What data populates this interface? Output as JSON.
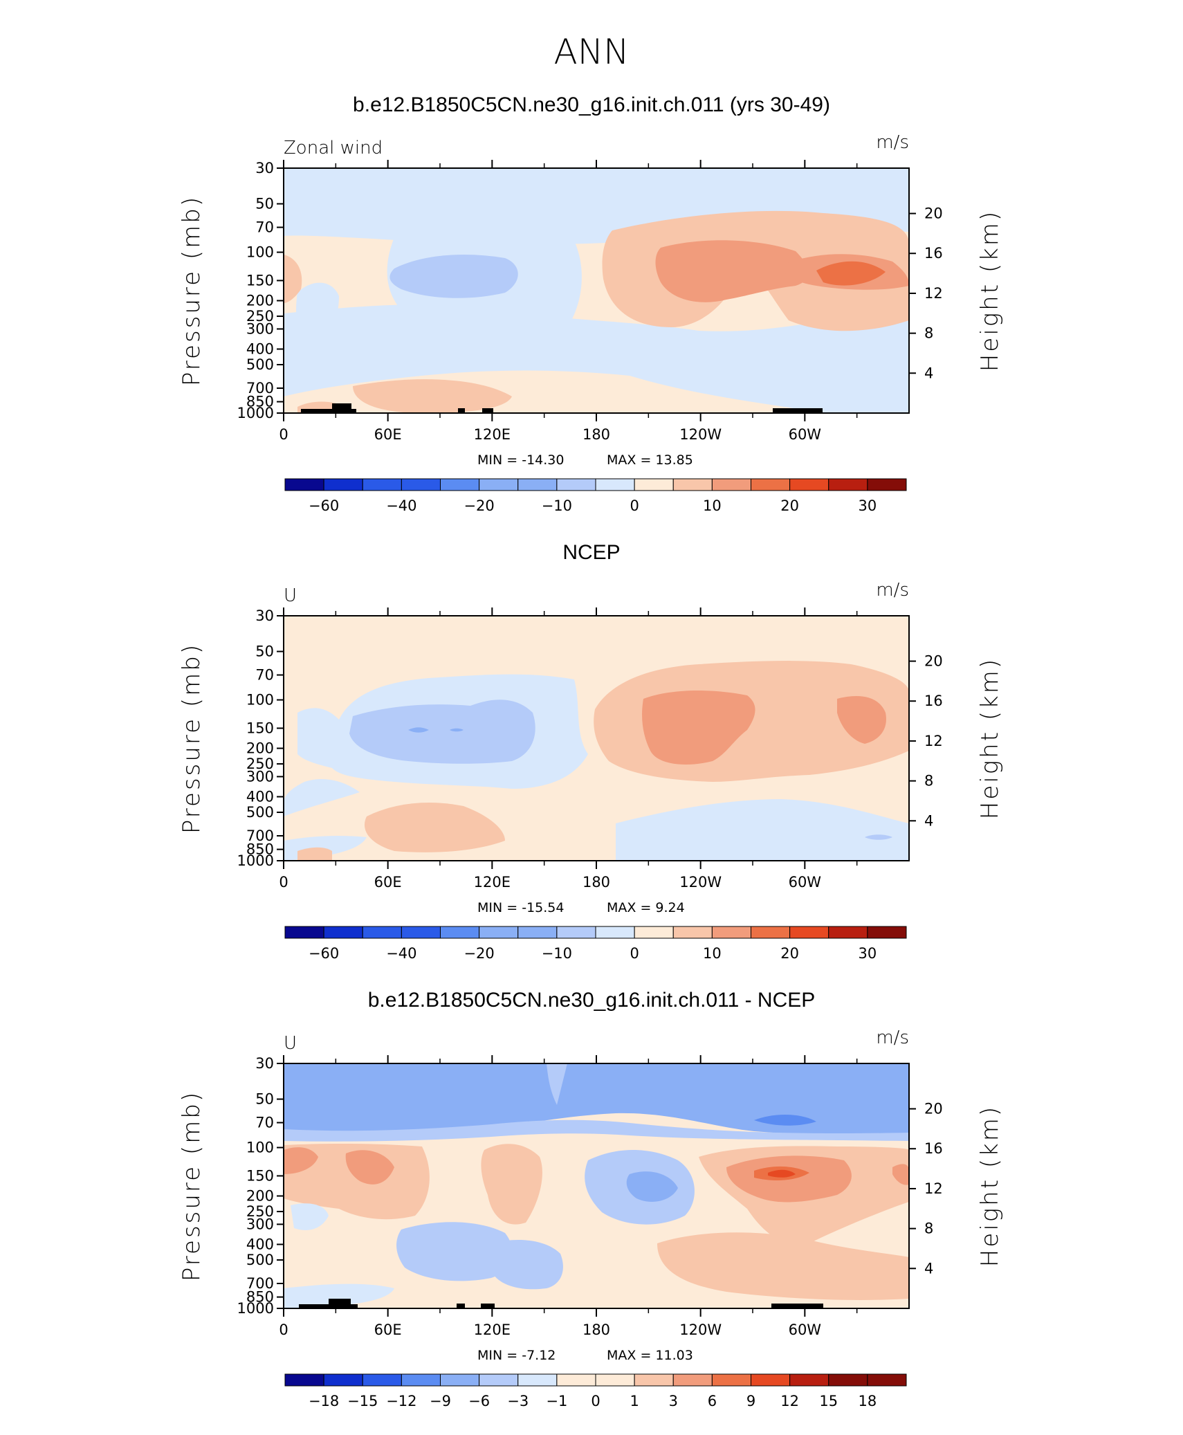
{
  "figure_title": "ANN",
  "colors": {
    "contour_scale": [
      "#08088f",
      "#0f2fce",
      "#2a5ae8",
      "#5b8cf2",
      "#8aaff5",
      "#b4cbf9",
      "#d8e8fc",
      "#fdebd8",
      "#f8c6aa",
      "#f19c7c",
      "#ec7145",
      "#e64922",
      "#b81f10",
      "#840d08"
    ],
    "land": "#000000",
    "frame": "#000000"
  },
  "chart_data": [
    {
      "type": "heatmap",
      "title": "b.e12.B1850C5CN.ne30_g16.init.ch.011 (yrs 30-49)",
      "left_label": "Zonal wind",
      "units": "m/s",
      "ylabel": "Pressure (mb)",
      "ylabel_right": "Height (km)",
      "x_ticks": [
        "0",
        "60E",
        "120E",
        "180",
        "120W",
        "60W"
      ],
      "y_ticks": [
        "30",
        "50",
        "70",
        "100",
        "150",
        "200",
        "250",
        "300",
        "400",
        "500",
        "700",
        "850",
        "1000"
      ],
      "y_ticks_right": [
        "20",
        "16",
        "12",
        "8",
        "4"
      ],
      "min_label": "MIN = -14.30",
      "max_label": "MAX =  13.85",
      "colorbar_labels": [
        "-60",
        "-40",
        "-20",
        "-10",
        "0",
        "10",
        "20",
        "30"
      ]
    },
    {
      "type": "heatmap",
      "title": "NCEP",
      "left_label": "U",
      "units": "m/s",
      "ylabel": "Pressure (mb)",
      "ylabel_right": "Height (km)",
      "x_ticks": [
        "0",
        "60E",
        "120E",
        "180",
        "120W",
        "60W"
      ],
      "y_ticks": [
        "30",
        "50",
        "70",
        "100",
        "150",
        "200",
        "250",
        "300",
        "400",
        "500",
        "700",
        "850",
        "1000"
      ],
      "y_ticks_right": [
        "20",
        "16",
        "12",
        "8",
        "4"
      ],
      "min_label": "MIN = -15.54",
      "max_label": "MAX =    9.24",
      "colorbar_labels": [
        "-60",
        "-40",
        "-20",
        "-10",
        "0",
        "10",
        "20",
        "30"
      ]
    },
    {
      "type": "heatmap",
      "title": "b.e12.B1850C5CN.ne30_g16.init.ch.011 - NCEP",
      "left_label": "U",
      "units": "m/s",
      "ylabel": "Pressure (mb)",
      "ylabel_right": "Height (km)",
      "x_ticks": [
        "0",
        "60E",
        "120E",
        "180",
        "120W",
        "60W"
      ],
      "y_ticks": [
        "30",
        "50",
        "70",
        "100",
        "150",
        "200",
        "250",
        "300",
        "400",
        "500",
        "700",
        "850",
        "1000"
      ],
      "y_ticks_right": [
        "20",
        "16",
        "12",
        "8",
        "4"
      ],
      "min_label": "MIN =   -7.12",
      "max_label": "MAX =   11.03",
      "colorbar_labels": [
        "-18",
        "-15",
        "-12",
        "-9",
        "-6",
        "-3",
        "-1",
        "0",
        "1",
        "3",
        "6",
        "9",
        "12",
        "15",
        "18"
      ]
    }
  ]
}
